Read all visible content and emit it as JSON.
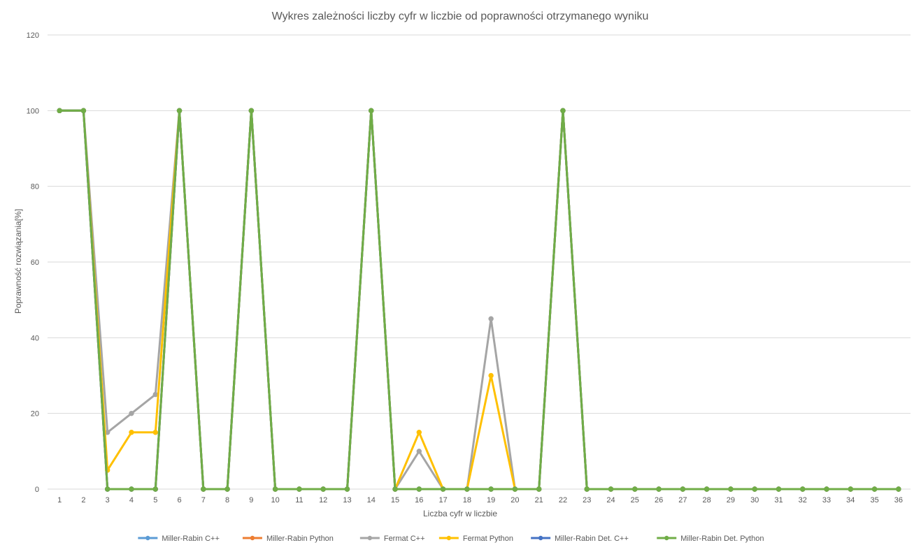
{
  "chart_data": {
    "type": "line",
    "title": "Wykres zależności liczby cyfr w liczbie od poprawności otrzymanego wyniku",
    "xlabel": "Liczba cyfr w liczbie",
    "ylabel": "Poprawność rozwiązania[%]",
    "ylim": [
      0,
      120
    ],
    "yticks": [
      "0",
      "20",
      "40",
      "60",
      "80",
      "100",
      "120"
    ],
    "grid": true,
    "legend_position": "bottom",
    "categories": [
      "1",
      "2",
      "3",
      "4",
      "5",
      "6",
      "7",
      "8",
      "9",
      "10",
      "11",
      "12",
      "13",
      "14",
      "15",
      "16",
      "17",
      "18",
      "19",
      "20",
      "21",
      "22",
      "23",
      "24",
      "25",
      "26",
      "27",
      "28",
      "29",
      "30",
      "31",
      "32",
      "33",
      "34",
      "35",
      "36"
    ],
    "series": [
      {
        "name": "Miller-Rabin C++",
        "color": "#5b9bd5",
        "values": [
          100,
          100,
          0,
          0,
          0,
          100,
          0,
          0,
          100,
          0,
          0,
          0,
          0,
          100,
          0,
          0,
          0,
          0,
          0,
          0,
          0,
          100,
          0,
          0,
          0,
          0,
          0,
          0,
          0,
          0,
          0,
          0,
          0,
          0,
          0,
          0
        ]
      },
      {
        "name": "Miller-Rabin Python",
        "color": "#ed7d31",
        "values": [
          100,
          100,
          0,
          0,
          0,
          100,
          0,
          0,
          100,
          0,
          0,
          0,
          0,
          100,
          0,
          0,
          0,
          0,
          0,
          0,
          0,
          100,
          0,
          0,
          0,
          0,
          0,
          0,
          0,
          0,
          0,
          0,
          0,
          0,
          0,
          0
        ]
      },
      {
        "name": "Fermat C++",
        "color": "#a5a5a5",
        "values": [
          100,
          100,
          15,
          20,
          25,
          100,
          0,
          0,
          100,
          0,
          0,
          0,
          0,
          100,
          0,
          10,
          0,
          0,
          45,
          0,
          0,
          100,
          0,
          0,
          0,
          0,
          0,
          0,
          0,
          0,
          0,
          0,
          0,
          0,
          0,
          0
        ]
      },
      {
        "name": "Fermat Python",
        "color": "#ffc000",
        "values": [
          100,
          100,
          5,
          15,
          15,
          100,
          0,
          0,
          100,
          0,
          0,
          0,
          0,
          100,
          0,
          15,
          0,
          0,
          30,
          0,
          0,
          100,
          0,
          0,
          0,
          0,
          0,
          0,
          0,
          0,
          0,
          0,
          0,
          0,
          0,
          0
        ]
      },
      {
        "name": "Miller-Rabin Det. C++",
        "color": "#4472c4",
        "values": [
          100,
          100,
          0,
          0,
          0,
          100,
          0,
          0,
          100,
          0,
          0,
          0,
          0,
          100,
          0,
          0,
          0,
          0,
          0,
          0,
          0,
          100,
          0,
          0,
          0,
          0,
          0,
          0,
          0,
          0,
          0,
          0,
          0,
          0,
          0,
          0
        ]
      },
      {
        "name": "Miller-Rabin Det. Python",
        "color": "#70ad47",
        "values": [
          100,
          100,
          0,
          0,
          0,
          100,
          0,
          0,
          100,
          0,
          0,
          0,
          0,
          100,
          0,
          0,
          0,
          0,
          0,
          0,
          0,
          100,
          0,
          0,
          0,
          0,
          0,
          0,
          0,
          0,
          0,
          0,
          0,
          0,
          0,
          0
        ]
      }
    ]
  }
}
